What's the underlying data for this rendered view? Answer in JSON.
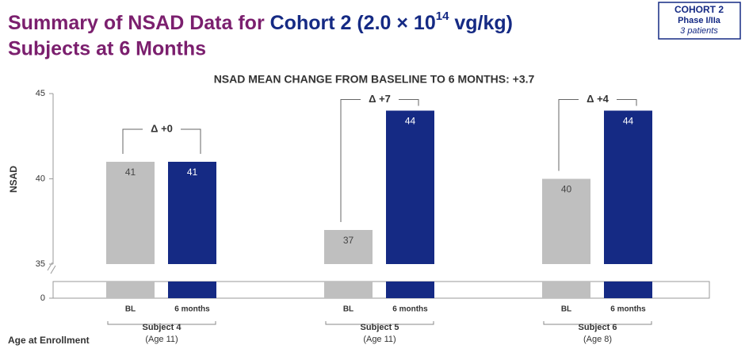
{
  "header": {
    "title_part1": "Summary of NSAD Data for ",
    "title_part2": "Cohort 2 (2.0 × 10",
    "title_superscript": "14",
    "title_part3": " vg/kg)",
    "title_line2": "Subjects at 6 Months"
  },
  "badge": {
    "line1": "COHORT 2",
    "line2": "Phase I/IIa",
    "line3": "3 patients"
  },
  "chart_data": {
    "type": "bar",
    "title": "NSAD MEAN CHANGE FROM BASELINE TO 6 MONTHS: +3.7",
    "y_label": "NSAD",
    "categories": [
      "Subject 4",
      "Subject 5",
      "Subject 6"
    ],
    "category_notes": [
      "(Age 11)",
      "(Age 11)",
      "(Age 8)"
    ],
    "category_note_title": "Age at Enrollment",
    "annotations": [
      "Δ +0",
      "Δ +7",
      "Δ +4"
    ],
    "series": [
      {
        "name": "BL",
        "color": "#bfbfbf",
        "values": [
          41,
          37,
          40
        ]
      },
      {
        "name": "6 months",
        "color": "#152a84",
        "values": [
          41,
          44,
          44
        ]
      }
    ],
    "ylim": [
      35,
      45
    ],
    "yticks": [
      35,
      40,
      45
    ],
    "yticks_below_break": [
      0
    ]
  }
}
